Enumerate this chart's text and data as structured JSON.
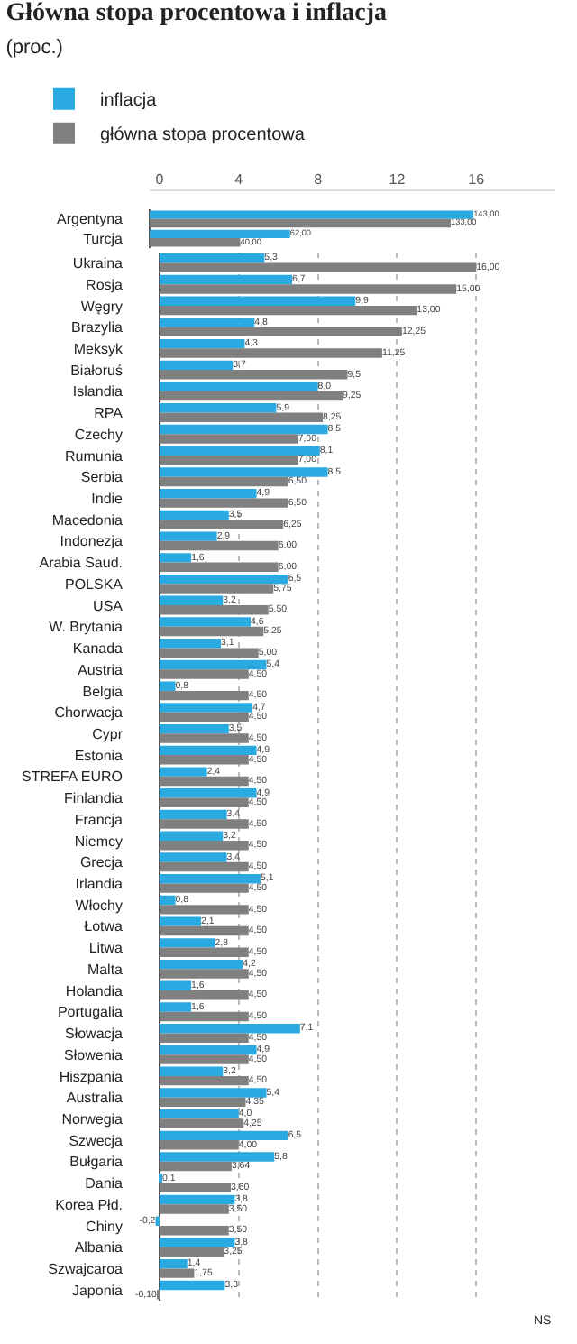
{
  "chart_data": [
    {
      "type": "bar",
      "orientation": "horizontal",
      "title": "Główna stopa procentowa i inflacja",
      "subtitle": "(proc.)",
      "legend": "top left",
      "categories": [
        "Argentyna",
        "Turcja"
      ],
      "series": [
        {
          "name": "inflacja",
          "color": "#29abe2",
          "values": [
            143.0,
            62.0
          ],
          "value_labels": [
            "143,00",
            "62,00"
          ]
        },
        {
          "name": "główna stopa procentowa",
          "color": "#808080",
          "values": [
            133.0,
            40.0
          ],
          "value_labels": [
            "133,00",
            "40,00"
          ]
        }
      ]
    },
    {
      "type": "bar",
      "orientation": "horizontal",
      "categories": [
        "Ukraina",
        "Rosja",
        "Węgry",
        "Brazylia",
        "Meksyk",
        "Białoruś",
        "Islandia",
        "RPA",
        "Czechy",
        "Rumunia",
        "Serbia",
        "Indie",
        "Macedonia",
        "Indonezja",
        "Arabia Saud.",
        "POLSKA",
        "USA",
        "W. Brytania",
        "Kanada",
        "Austria",
        "Belgia",
        "Chorwacja",
        "Cypr",
        "Estonia",
        "STREFA EURO",
        "Finlandia",
        "Francja",
        "Niemcy",
        "Grecja",
        "Irlandia",
        "Włochy",
        "Łotwa",
        "Litwa",
        "Malta",
        "Holandia",
        "Portugalia",
        "Słowacja",
        "Słowenia",
        "Hiszpania",
        "Australia",
        "Norwegia",
        "Szwecja",
        "Bułgaria",
        "Dania",
        "Korea Płd.",
        "Chiny",
        "Albania",
        "Szwajcaroa",
        "Japonia"
      ],
      "series": [
        {
          "color": "#29abe2",
          "values": [
            5.3,
            6.7,
            9.9,
            4.8,
            4.3,
            3.7,
            8.0,
            5.9,
            8.5,
            8.1,
            8.5,
            4.9,
            3.5,
            2.9,
            1.6,
            6.5,
            3.2,
            4.6,
            3.1,
            5.4,
            0.8,
            4.7,
            3.5,
            4.9,
            2.4,
            4.9,
            3.4,
            3.2,
            3.4,
            5.1,
            0.8,
            2.1,
            2.8,
            4.2,
            1.6,
            1.6,
            7.1,
            4.9,
            3.2,
            5.4,
            4.0,
            6.5,
            5.8,
            0.1,
            3.8,
            -0.2,
            3.8,
            1.4,
            3.3
          ],
          "value_labels": [
            "5,3",
            "6,7",
            "9,9",
            "4,8",
            "4,3",
            "3,7",
            "8,0",
            "5,9",
            "8,5",
            "8,1",
            "8,5",
            "4,9",
            "3,5",
            "2,9",
            "1,6",
            "6,5",
            "3,2",
            "4,6",
            "3,1",
            "5,4",
            "0,8",
            "4,7",
            "3,5",
            "4,9",
            "2,4",
            "4,9",
            "3,4",
            "3,2",
            "3,4",
            "5,1",
            "0,8",
            "2,1",
            "2,8",
            "4,2",
            "1,6",
            "1,6",
            "7,1",
            "4,9",
            "3,2",
            "5,4",
            "4,0",
            "6,5",
            "5,8",
            "0,1",
            "3,8",
            "-0,2",
            "3,8",
            "1,4",
            "3,3"
          ]
        },
        {
          "color": "#808080",
          "values": [
            16.0,
            15.0,
            13.0,
            12.25,
            11.25,
            9.5,
            9.25,
            8.25,
            7.0,
            7.0,
            6.5,
            6.5,
            6.25,
            6.0,
            6.0,
            5.75,
            5.5,
            5.25,
            5.0,
            4.5,
            4.5,
            4.5,
            4.5,
            4.5,
            4.5,
            4.5,
            4.5,
            4.5,
            4.5,
            4.5,
            4.5,
            4.5,
            4.5,
            4.5,
            4.5,
            4.5,
            4.5,
            4.5,
            4.5,
            4.35,
            4.25,
            4.0,
            3.64,
            3.6,
            3.5,
            3.5,
            3.25,
            1.75,
            -0.1
          ],
          "value_labels": [
            "16,00",
            "15,00",
            "13,00",
            "12,25",
            "11,25",
            "9,5",
            "9,25",
            "8,25",
            "7,00",
            "7,00",
            "6,50",
            "6,50",
            "6,25",
            "6,00",
            "6,00",
            "5,75",
            "5,50",
            "5,25",
            "5,00",
            "4,50",
            "4,50",
            "4,50",
            "4,50",
            "4,50",
            "4,50",
            "4,50",
            "4,50",
            "4,50",
            "4,50",
            "4,50",
            "4,50",
            "4,50",
            "4,50",
            "4,50",
            "4,50",
            "4,50",
            "4,50",
            "4,50",
            "4,50",
            "4,35",
            "4,25",
            "4,00",
            "3,64",
            "3,60",
            "3,50",
            "3,50",
            "3,25",
            "1,75",
            "-0,10"
          ]
        }
      ],
      "xlim": [
        -0.5,
        20
      ],
      "xticks": [
        0,
        4,
        8,
        12,
        16
      ],
      "grid": "x",
      "annotations": [
        "NS"
      ]
    }
  ]
}
